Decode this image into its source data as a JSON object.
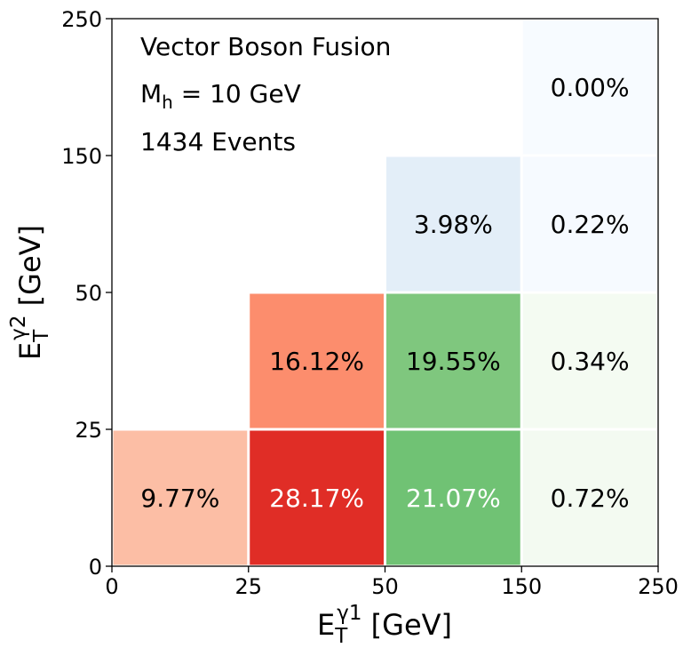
{
  "chart_data": {
    "type": "heatmap",
    "title": "",
    "xlabel": {
      "main": "E",
      "sub": "T",
      "sup": "γ1",
      "unit": " [GeV]"
    },
    "ylabel": {
      "main": "E",
      "sub": "T",
      "sup": "γ2",
      "unit": " [GeV]"
    },
    "x_bin_edges": [
      "0",
      "25",
      "50",
      "150",
      "250"
    ],
    "y_bin_edges": [
      "0",
      "25",
      "50",
      "150",
      "250"
    ],
    "cells": [
      {
        "x_bin": 0,
        "y_bin": 0,
        "value": 9.77,
        "label": "9.77%",
        "color": "#fcbea5",
        "text_color": "#000000"
      },
      {
        "x_bin": 1,
        "y_bin": 0,
        "value": 28.17,
        "label": "28.17%",
        "color": "#e02d26",
        "text_color": "#ffffff"
      },
      {
        "x_bin": 1,
        "y_bin": 1,
        "value": 16.12,
        "label": "16.12%",
        "color": "#fc8d6d",
        "text_color": "#000000"
      },
      {
        "x_bin": 2,
        "y_bin": 0,
        "value": 21.07,
        "label": "21.07%",
        "color": "#70c274",
        "text_color": "#ffffff"
      },
      {
        "x_bin": 2,
        "y_bin": 1,
        "value": 19.55,
        "label": "19.55%",
        "color": "#7fc77e",
        "text_color": "#000000"
      },
      {
        "x_bin": 2,
        "y_bin": 2,
        "value": 3.98,
        "label": "3.98%",
        "color": "#e3eef8",
        "text_color": "#000000"
      },
      {
        "x_bin": 3,
        "y_bin": 0,
        "value": 0.72,
        "label": "0.72%",
        "color": "#f3faf1",
        "text_color": "#000000"
      },
      {
        "x_bin": 3,
        "y_bin": 1,
        "value": 0.34,
        "label": "0.34%",
        "color": "#f4fbf2",
        "text_color": "#000000"
      },
      {
        "x_bin": 3,
        "y_bin": 2,
        "value": 0.22,
        "label": "0.22%",
        "color": "#f6faff",
        "text_color": "#000000"
      },
      {
        "x_bin": 3,
        "y_bin": 3,
        "value": 0.0,
        "label": "0.00%",
        "color": "#f7fbff",
        "text_color": "#000000"
      }
    ],
    "annotations": {
      "process": "Vector Boson Fusion",
      "mass": {
        "main": "M",
        "sub": "h",
        "rest": " = 10 GeV"
      },
      "events": "1434 Events"
    },
    "grid": false,
    "legend": "none"
  }
}
